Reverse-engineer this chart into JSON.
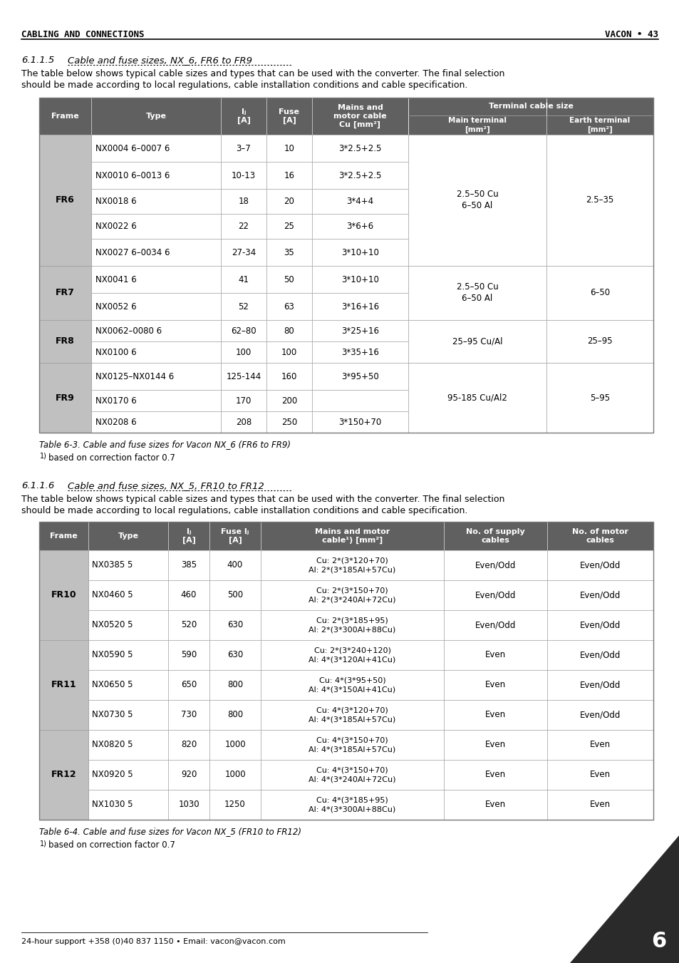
{
  "page_header_left": "CABLING AND CONNECTIONS",
  "page_header_right": "VACON • 43",
  "section1_num": "6.1.1.5",
  "section1_title": "Cable and fuse sizes, NX_6, FR6 to FR9",
  "section1_body1": "The table below shows typical cable sizes and types that can be used with the converter. The final selection",
  "section1_body2": "should be made according to local regulations, cable installation conditions and cable specification.",
  "table1_caption": "Table 6-3. Cable and fuse sizes for Vacon NX_6 (FR6 to FR9)",
  "table1_footnote": "¹)based on correction factor 0.7",
  "table1_col_widths": [
    62,
    155,
    55,
    55,
    115,
    165,
    125
  ],
  "table1_header_row1": [
    "Frame",
    "Type",
    "Iⱼ\n[A]",
    "Fuse\n[A]",
    "Mains and\nmotor cable\nCu [mm²]",
    "Terminal cable size",
    ""
  ],
  "table1_header_row2": [
    "",
    "",
    "",
    "",
    "",
    "Main terminal\n[mm²]",
    "Earth terminal\n[mm²]"
  ],
  "table1_data": [
    [
      "FR6",
      "NX0004 6–0007 6",
      "3–7",
      "10",
      "3*2.5+2.5",
      "2.5–50 Cu\n6–50 Al",
      "2.5–35"
    ],
    [
      "",
      "NX0010 6–0013 6",
      "10-13",
      "16",
      "3*2.5+2.5",
      "",
      ""
    ],
    [
      "",
      "NX0018 6",
      "18",
      "20",
      "3*4+4",
      "",
      ""
    ],
    [
      "",
      "NX0022 6",
      "22",
      "25",
      "3*6+6",
      "",
      ""
    ],
    [
      "",
      "NX0027 6–0034 6",
      "27-34",
      "35",
      "3*10+10",
      "",
      ""
    ],
    [
      "FR7",
      "NX0041 6",
      "41",
      "50",
      "3*10+10",
      "2.5–50 Cu\n6–50 Al",
      "6–50"
    ],
    [
      "",
      "NX0052 6",
      "52",
      "63",
      "3*16+16",
      "",
      ""
    ],
    [
      "FR8",
      "NX0062–0080 6",
      "62–80",
      "80",
      "3*25+16",
      "25–95 Cu/Al",
      "25–95"
    ],
    [
      "",
      "NX0100 6",
      "100",
      "100",
      "3*35+16",
      "",
      ""
    ],
    [
      "FR9",
      "NX0125–NX0144 6",
      "125-144",
      "160",
      "3*95+50",
      "95-185 Cu/Al2",
      "5–95"
    ],
    [
      "",
      "NX0170 6",
      "170",
      "200",
      "",
      "",
      ""
    ],
    [
      "",
      "NX0208 6",
      "208",
      "250",
      "3*150+70",
      "",
      ""
    ]
  ],
  "table1_row_heights": [
    38,
    38,
    35,
    35,
    38,
    38,
    38,
    30,
    30,
    38,
    30,
    30
  ],
  "table1_frame_merges": [
    [
      0,
      4,
      "FR6"
    ],
    [
      5,
      6,
      "FR7"
    ],
    [
      7,
      8,
      "FR8"
    ],
    [
      9,
      11,
      "FR9"
    ]
  ],
  "table1_terminal_merges": [
    [
      0,
      4,
      "2.5–50 Cu\n6–50 Al",
      "2.5–35"
    ],
    [
      5,
      6,
      "2.5–50 Cu\n6–50 Al",
      "6–50"
    ],
    [
      7,
      8,
      "25–95 Cu/Al",
      "25–95"
    ],
    [
      9,
      11,
      "95-185 Cu/Al2",
      "5–95"
    ]
  ],
  "section2_num": "6.1.1.6",
  "section2_title": "Cable and fuse sizes, NX_5, FR10 to FR12",
  "section2_body1": "The table below shows typical cable sizes and types that can be used with the converter. The final selection",
  "section2_body2": "should be made according to local regulations, cable installation conditions and cable specification.",
  "table2_caption": "Table 6-4. Cable and fuse sizes for Vacon NX_5 (FR10 to FR12)",
  "table2_footnote": "¹)based on correction factor 0.7",
  "table2_col_widths": [
    62,
    100,
    52,
    65,
    230,
    130,
    130
  ],
  "table2_data": [
    [
      "",
      "NX0385 5",
      "385",
      "400",
      "Cu: 2*(3*120+70)\nAl: 2*(3*185Al+57Cu)",
      "Even/Odd",
      "Even/Odd"
    ],
    [
      "FR10",
      "NX0460 5",
      "460",
      "500",
      "Cu: 2*(3*150+70)\nAl: 2*(3*240Al+72Cu)",
      "Even/Odd",
      "Even/Odd"
    ],
    [
      "",
      "NX0520 5",
      "520",
      "630",
      "Cu: 2*(3*185+95)\nAl: 2*(3*300Al+88Cu)",
      "Even/Odd",
      "Even/Odd"
    ],
    [
      "",
      "NX0590 5",
      "590",
      "630",
      "Cu: 2*(3*240+120)\nAl: 4*(3*120Al+41Cu)",
      "Even",
      "Even/Odd"
    ],
    [
      "FR11",
      "NX0650 5",
      "650",
      "800",
      "Cu: 4*(3*95+50)\nAl: 4*(3*150Al+41Cu)",
      "Even",
      "Even/Odd"
    ],
    [
      "",
      "NX0730 5",
      "730",
      "800",
      "Cu: 4*(3*120+70)\nAl: 4*(3*185Al+57Cu)",
      "Even",
      "Even/Odd"
    ],
    [
      "",
      "NX0820 5",
      "820",
      "1000",
      "Cu: 4*(3*150+70)\nAl: 4*(3*185Al+57Cu)",
      "Even",
      "Even"
    ],
    [
      "FR12",
      "NX0920 5",
      "920",
      "1000",
      "Cu: 4*(3*150+70)\nAl: 4*(3*240Al+72Cu)",
      "Even",
      "Even"
    ],
    [
      "",
      "NX1030 5",
      "1030",
      "1250",
      "Cu: 4*(3*185+95)\nAl: 4*(3*300Al+88Cu)",
      "Even",
      "Even"
    ]
  ],
  "table2_row_heights": [
    42,
    42,
    42,
    42,
    42,
    42,
    42,
    42,
    42
  ],
  "table2_frame_merges": [
    [
      0,
      2,
      "FR10"
    ],
    [
      3,
      5,
      "FR11"
    ],
    [
      6,
      8,
      "FR12"
    ]
  ],
  "header_bg": "#606060",
  "header_fg": "#ffffff",
  "frame_bg": "#c0c0c0",
  "border_color": "#999999",
  "page_footer": "24-hour support +358 (0)40 837 1150 • Email: vacon@vacon.com",
  "page_num": "6"
}
